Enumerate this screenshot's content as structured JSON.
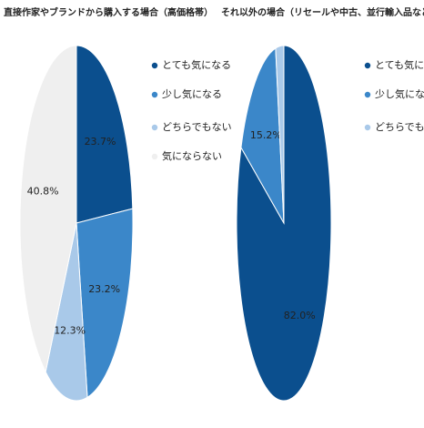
{
  "chart_data": [
    {
      "type": "pie",
      "title": "直接作家やブランドから購入する場合（高価格帯）",
      "categories": [
        "とても気になる",
        "少し気になる",
        "どちらでもない",
        "気にならない"
      ],
      "values": [
        23.7,
        23.2,
        12.3,
        40.8
      ],
      "value_labels": [
        "23.7%",
        "23.2%",
        "12.3%",
        "40.8%"
      ],
      "colors": [
        "#0b4f8e",
        "#3b87c9",
        "#a9c9e9",
        "#efefef"
      ]
    },
    {
      "type": "pie",
      "title": "それ以外の場合（リセールや中古、並行輸入品など）（高価格帯）",
      "categories": [
        "とても気になる",
        "少し気になる",
        "どちらでもない"
      ],
      "values": [
        82.0,
        15.2,
        2.8
      ],
      "value_labels": [
        "82.0%",
        "15.2%",
        null
      ],
      "colors": [
        "#0b4f8e",
        "#3b87c9",
        "#a9c9e9"
      ]
    }
  ]
}
